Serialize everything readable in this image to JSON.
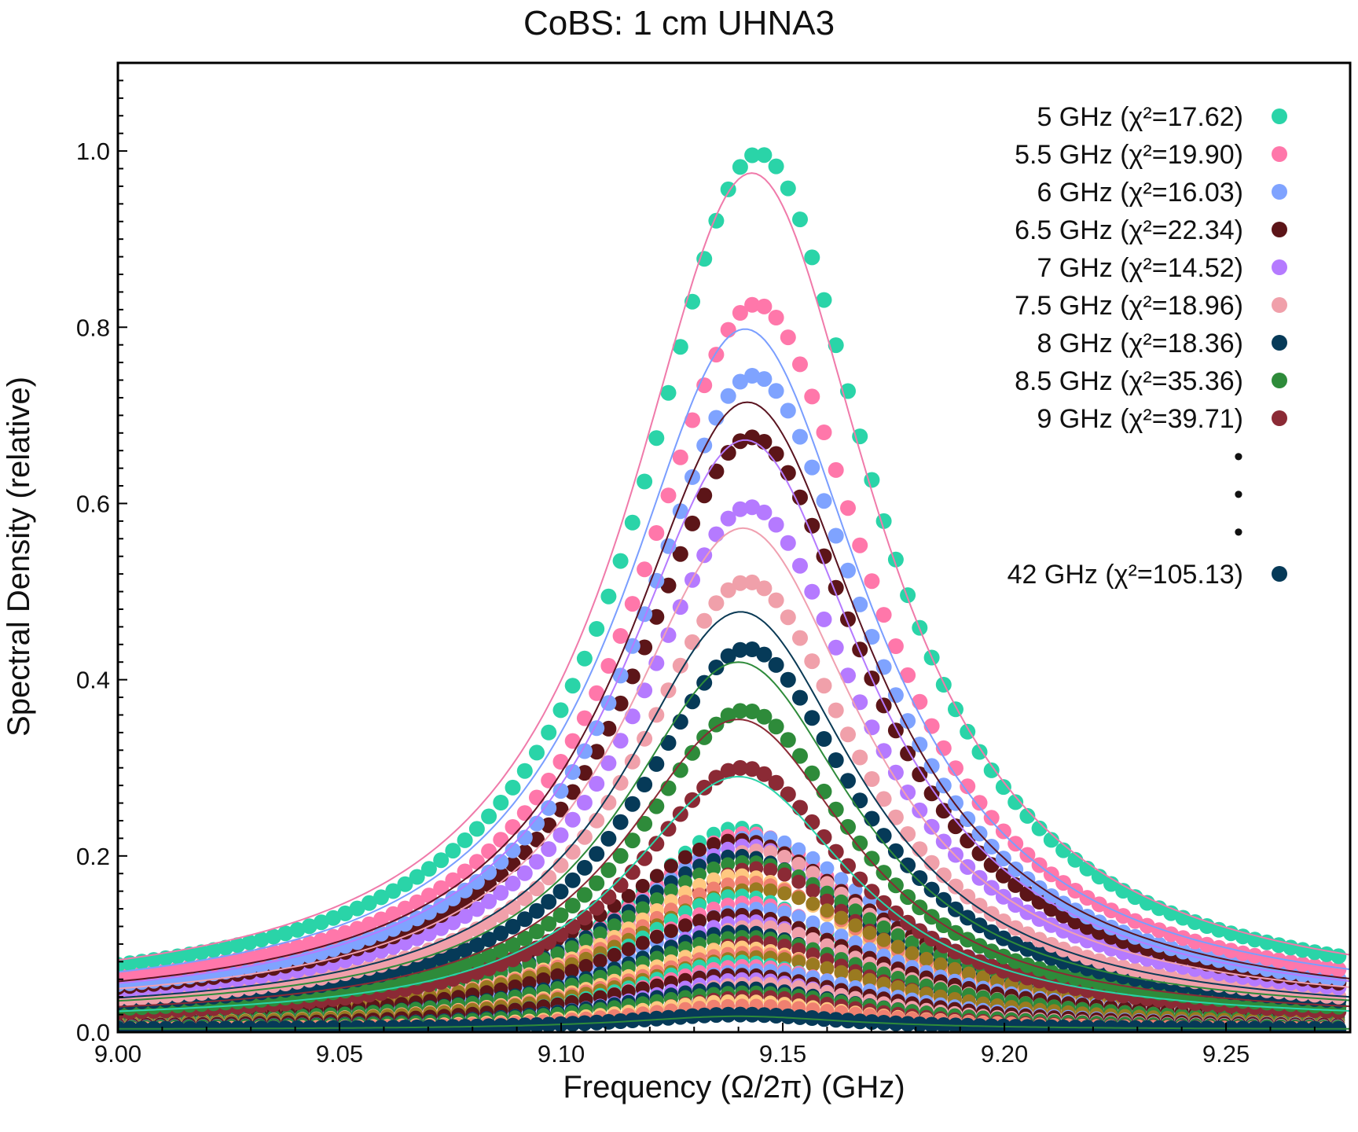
{
  "chart_data": {
    "type": "scatter",
    "title": "CoBS: 1 cm UHNA3",
    "xlabel": "Frequency (Ω/2π) (GHz)",
    "ylabel": "Spectral Density (relative)",
    "xlim": [
      9.0,
      9.278
    ],
    "ylim": [
      0.0,
      1.1
    ],
    "xticks": [
      "9.00",
      "9.05",
      "9.10",
      "9.15",
      "9.20",
      "9.25"
    ],
    "yticks": [
      "0.0",
      "0.2",
      "0.4",
      "0.6",
      "0.8",
      "1.0"
    ],
    "grid": false,
    "legend_position": "top-right",
    "legend_ellipsis": [
      "•",
      "•",
      "•"
    ],
    "series": [
      {
        "name": "5 GHz (χ²=17.62)",
        "color": "#2ad4a8",
        "fit_color": "#f07aaa",
        "peak": 0.997,
        "fit_peak": 0.975,
        "center": 9.1445,
        "fit_center": 9.143,
        "hwhm": 0.0325,
        "baseline": 0.03
      },
      {
        "name": "5.5 GHz (χ²=19.90)",
        "color": "#ff77aa",
        "fit_color": "#7a9eff",
        "peak": 0.826,
        "fit_peak": 0.798,
        "center": 9.144,
        "fit_center": 9.1415,
        "hwhm": 0.0325,
        "baseline": 0.025
      },
      {
        "name": "6 GHz (χ²=16.03)",
        "color": "#7fa3ff",
        "fit_color": "#5a1420",
        "peak": 0.745,
        "fit_peak": 0.715,
        "center": 9.1435,
        "fit_center": 9.142,
        "hwhm": 0.032,
        "baseline": 0.02
      },
      {
        "name": "6.5 GHz (χ²=22.34)",
        "color": "#5c1518",
        "fit_color": "#b57aff",
        "peak": 0.675,
        "fit_peak": 0.672,
        "center": 9.143,
        "fit_center": 9.1415,
        "hwhm": 0.032,
        "baseline": 0.02
      },
      {
        "name": "7 GHz (χ²=14.52)",
        "color": "#b57aff",
        "fit_color": "#f0a0b0",
        "peak": 0.596,
        "fit_peak": 0.572,
        "center": 9.1425,
        "fit_center": 9.141,
        "hwhm": 0.0315,
        "baseline": 0.02
      },
      {
        "name": "7.5 GHz (χ²=18.96)",
        "color": "#f0a0aa",
        "fit_color": "#0a3a55",
        "peak": 0.511,
        "fit_peak": 0.477,
        "center": 9.142,
        "fit_center": 9.1405,
        "hwhm": 0.031,
        "baseline": 0.015
      },
      {
        "name": "8 GHz (χ²=18.36)",
        "color": "#063a58",
        "fit_color": "#2e8b3a",
        "peak": 0.435,
        "fit_peak": 0.42,
        "center": 9.142,
        "fit_center": 9.14,
        "hwhm": 0.0305,
        "baseline": 0.015
      },
      {
        "name": "8.5 GHz (χ²=35.36)",
        "color": "#2e8b3a",
        "fit_color": "#8b2a35",
        "peak": 0.365,
        "fit_peak": 0.355,
        "center": 9.1415,
        "fit_center": 9.14,
        "hwhm": 0.03,
        "baseline": 0.012
      },
      {
        "name": "9 GHz (χ²=39.71)",
        "color": "#8b2a35",
        "fit_color": "#2ad4a8",
        "peak": 0.3,
        "fit_peak": 0.29,
        "center": 9.141,
        "fit_center": 9.14,
        "hwhm": 0.03,
        "baseline": 0.01
      },
      {
        "name": "42 GHz (χ²=105.13)",
        "color": "#063a58",
        "fit_color": "#2e8b3a",
        "peak": 0.02,
        "fit_peak": 0.018,
        "center": 9.14,
        "fit_center": 9.14,
        "hwhm": 0.03,
        "baseline": 0.003
      }
    ],
    "bulk_colors": [
      "#2ad4a8",
      "#ff77aa",
      "#7fa3ff",
      "#5c1518",
      "#b57aff",
      "#f0a0aa",
      "#063a58",
      "#2e8b3a",
      "#8b2a35",
      "#ffc880",
      "#f08070",
      "#9a7a20"
    ],
    "bulk_peaks": [
      0.232,
      0.226,
      0.222,
      0.218,
      0.212,
      0.206,
      0.2,
      0.193,
      0.186,
      0.178,
      0.17,
      0.162,
      0.155,
      0.147,
      0.14,
      0.133,
      0.126,
      0.12,
      0.114,
      0.108,
      0.102,
      0.096,
      0.09,
      0.085,
      0.08,
      0.075,
      0.07,
      0.065,
      0.06,
      0.055,
      0.05,
      0.045,
      0.04,
      0.035,
      0.03
    ]
  }
}
